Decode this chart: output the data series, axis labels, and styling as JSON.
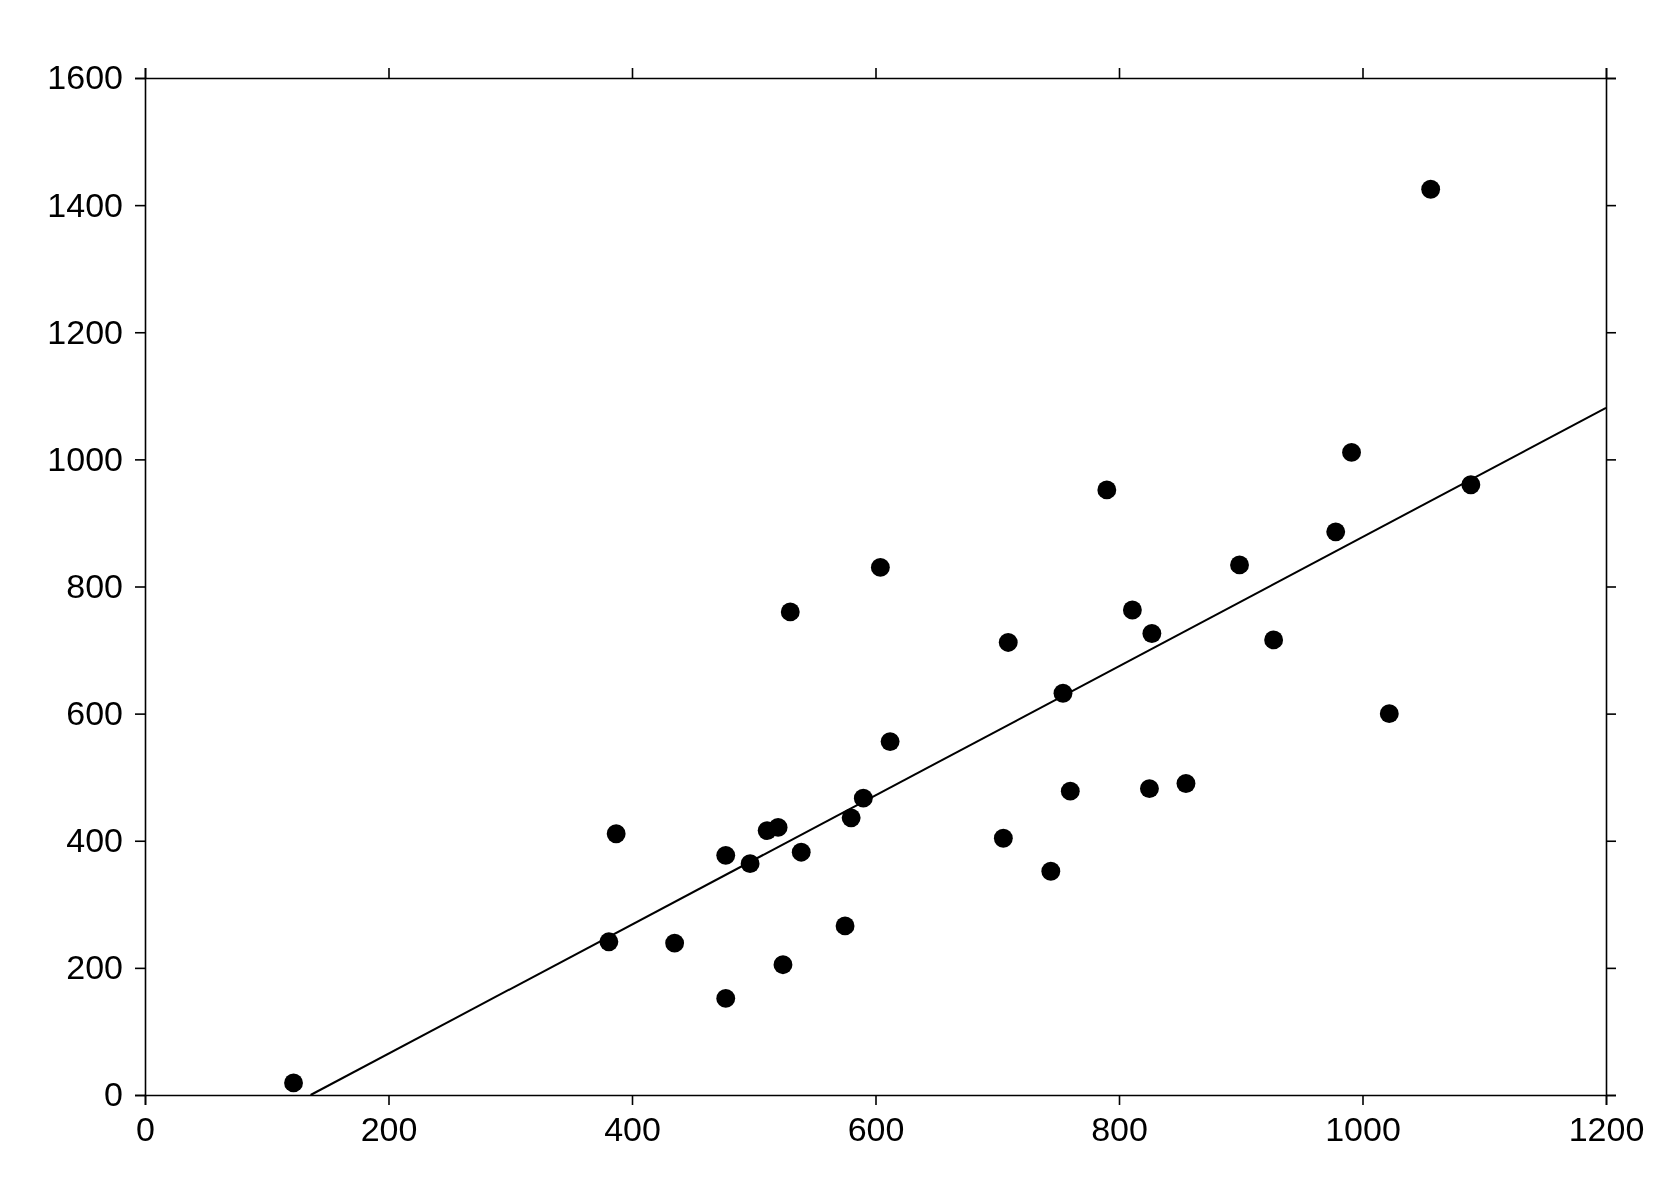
{
  "chart_data": {
    "type": "scatter",
    "xlim": [
      0,
      1200
    ],
    "ylim": [
      0,
      1600
    ],
    "xticks": [
      0,
      200,
      400,
      600,
      800,
      1000,
      1200
    ],
    "yticks": [
      0,
      200,
      400,
      600,
      800,
      1000,
      1200,
      1400,
      1600
    ],
    "grid": false,
    "series": [
      {
        "color": "#000000",
        "marker": "circle",
        "x": [
          122,
          381,
          387,
          435,
          477,
          477,
          497,
          511,
          520,
          524,
          530,
          539,
          575,
          580,
          590,
          604,
          612,
          705,
          709,
          744,
          754,
          760,
          790,
          811,
          825,
          827,
          855,
          899,
          927,
          978,
          991,
          1022,
          1056,
          1089
        ],
        "values": [
          19,
          241,
          411,
          239,
          377,
          152,
          364,
          416,
          421,
          205,
          760,
          382,
          266,
          436,
          467,
          830,
          556,
          404,
          712,
          352,
          632,
          478,
          952,
          763,
          482,
          726,
          490,
          834,
          716,
          886,
          1011,
          600,
          1425,
          960
        ]
      },
      {
        "type": "line",
        "color": "#000000",
        "marker": "none",
        "line_style": "solid",
        "x": [
          136,
          1200
        ],
        "values": [
          0,
          1081
        ]
      }
    ]
  }
}
